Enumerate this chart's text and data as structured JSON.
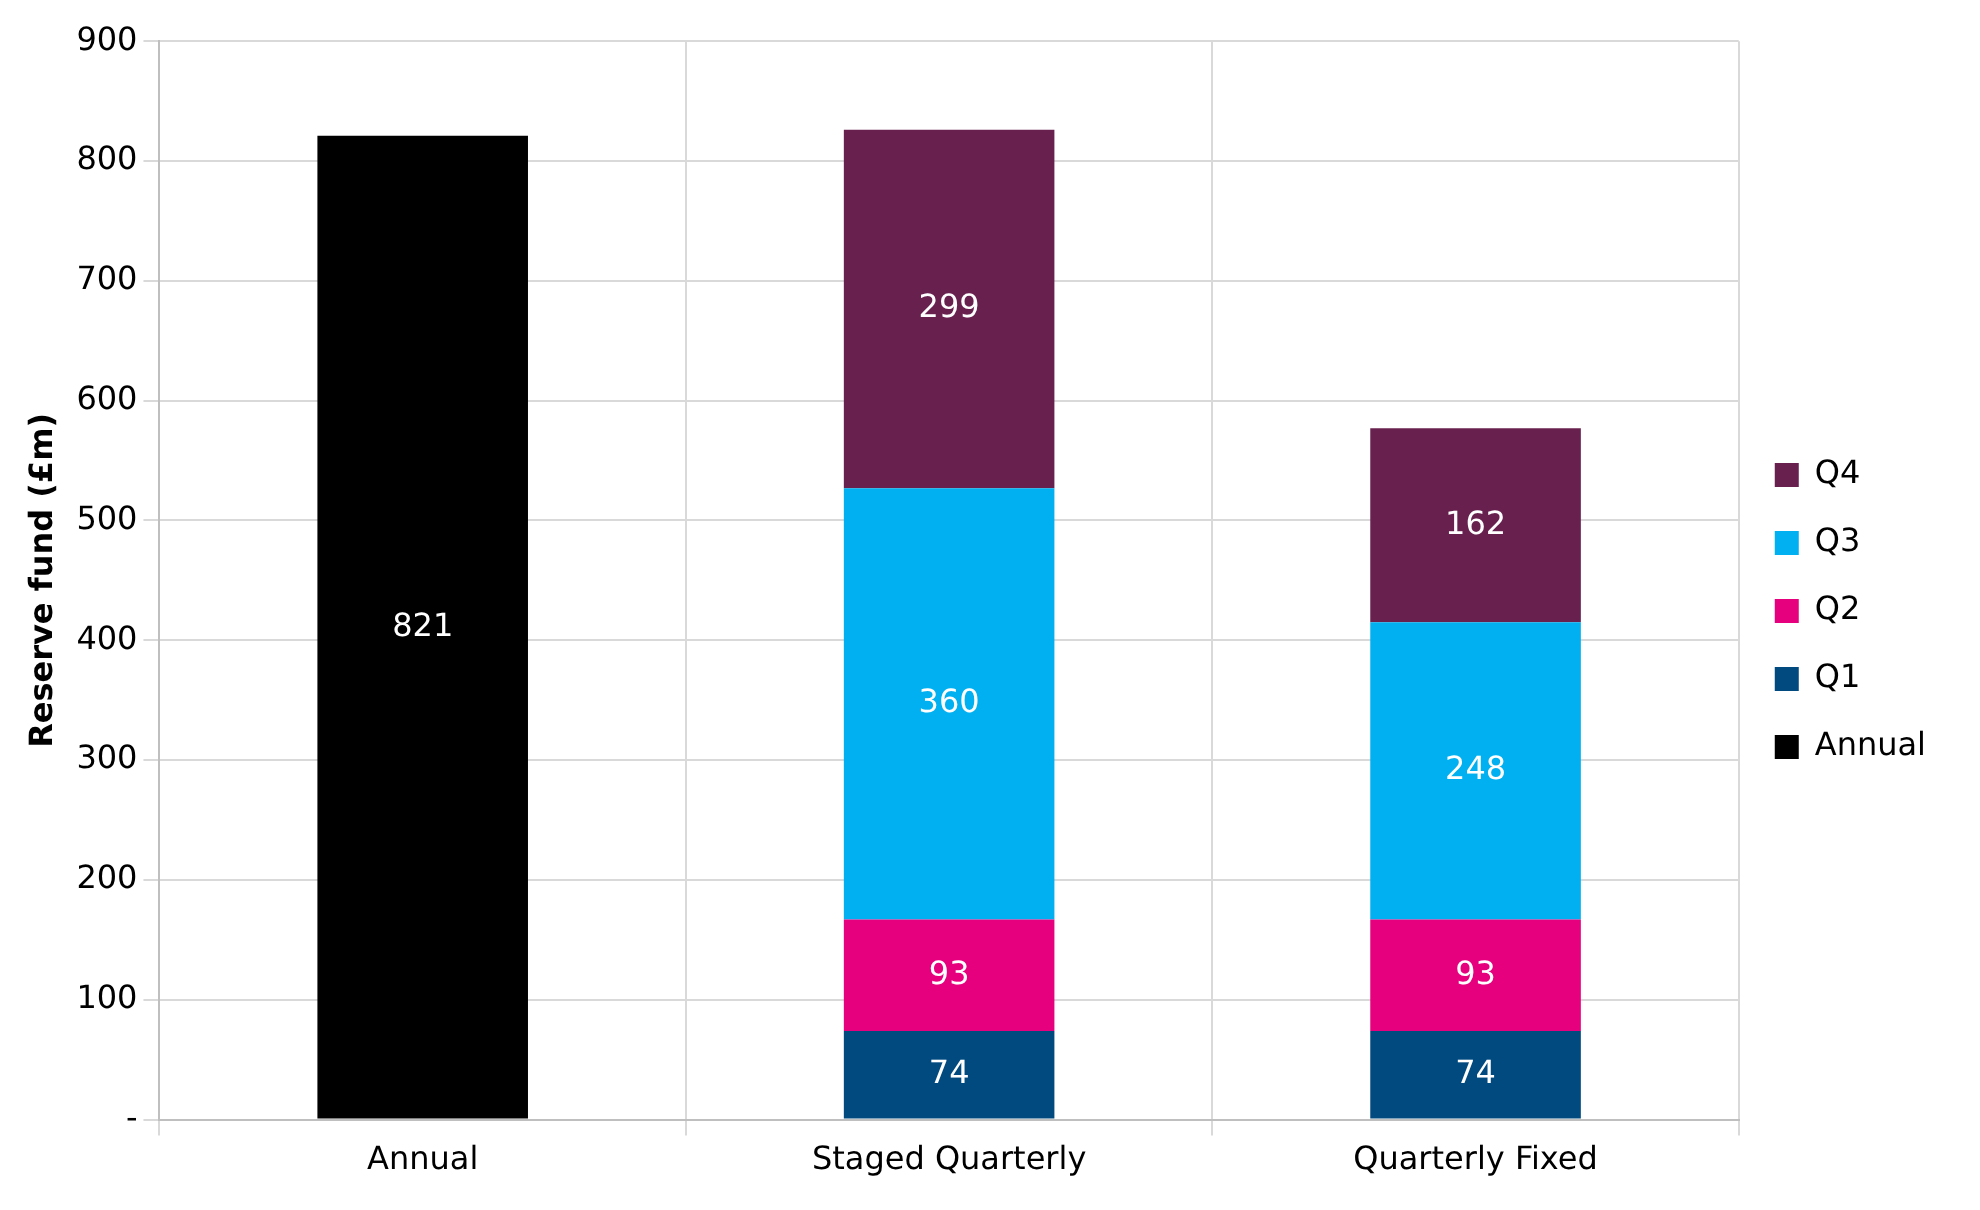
{
  "chart_data": {
    "type": "bar",
    "ylabel": "Reserve fund (£m)",
    "categories": [
      "Annual",
      "Staged Quarterly",
      "Quarterly Fixed"
    ],
    "stacked": true,
    "series": [
      {
        "name": "Annual",
        "color": "#000000",
        "values": [
          821,
          null,
          null
        ]
      },
      {
        "name": "Q1",
        "color": "#004a7f",
        "values": [
          null,
          74,
          74
        ]
      },
      {
        "name": "Q2",
        "color": "#e6007e",
        "values": [
          null,
          93,
          93
        ]
      },
      {
        "name": "Q3",
        "color": "#00b0f0",
        "values": [
          null,
          360,
          248
        ]
      },
      {
        "name": "Q4",
        "color": "#68204f",
        "values": [
          null,
          299,
          162
        ]
      }
    ],
    "ylim": [
      0,
      900
    ],
    "yticks": [
      {
        "value": 0,
        "label": "-"
      },
      100,
      200,
      300,
      400,
      500,
      600,
      700,
      800,
      900
    ],
    "grid": true,
    "legend": "right",
    "data_labels": true
  }
}
